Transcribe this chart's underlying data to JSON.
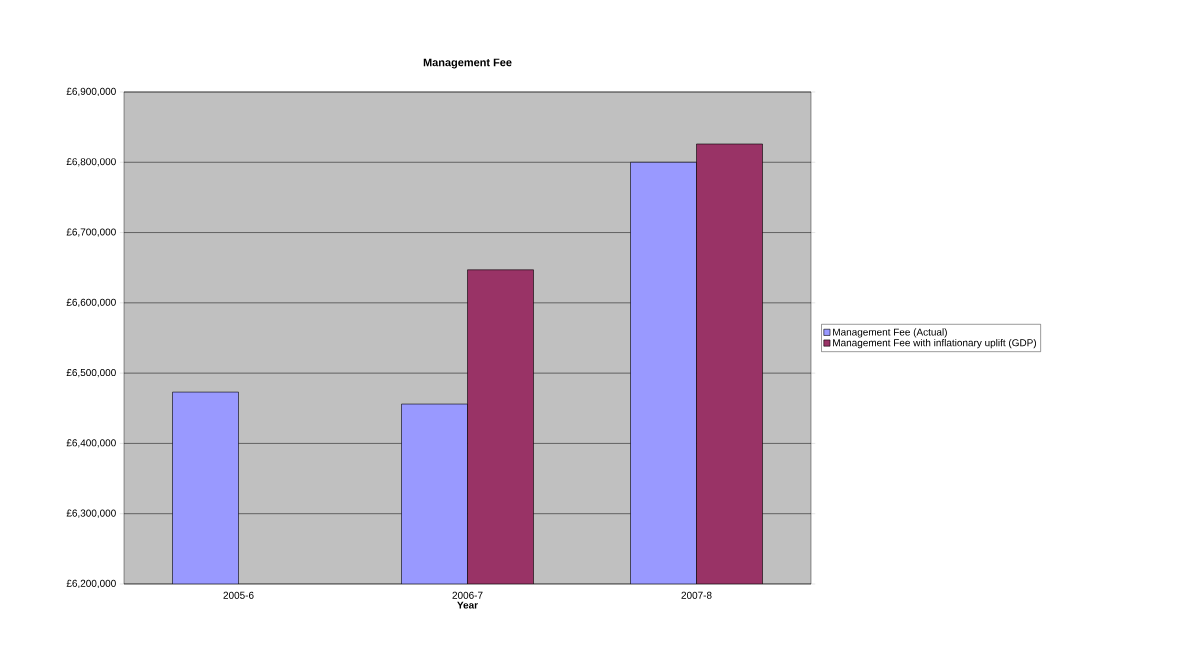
{
  "chart_data": {
    "type": "bar",
    "title": "Management Fee",
    "xlabel": "Year",
    "categories": [
      "2005-6",
      "2006-7",
      "2007-8"
    ],
    "series": [
      {
        "name": "Management Fee (Actual)",
        "color": "#9999ff",
        "values": [
          6473000,
          6456000,
          6800000
        ]
      },
      {
        "name": "Management Fee with inflationary uplift (GDP)",
        "color": "#993366",
        "values": [
          null,
          6647000,
          6826000
        ]
      }
    ],
    "ylim": [
      6200000,
      6900000
    ],
    "yticks": [
      {
        "value": 6200000,
        "label": "£6,200,000"
      },
      {
        "value": 6300000,
        "label": "£6,300,000"
      },
      {
        "value": 6400000,
        "label": "£6,400,000"
      },
      {
        "value": 6500000,
        "label": "£6,500,000"
      },
      {
        "value": 6600000,
        "label": "£6,600,000"
      },
      {
        "value": 6700000,
        "label": "£6,700,000"
      },
      {
        "value": 6800000,
        "label": "£6,800,000"
      },
      {
        "value": 6900000,
        "label": "£6,900,000"
      }
    ],
    "grid": "y",
    "legend": "right"
  }
}
